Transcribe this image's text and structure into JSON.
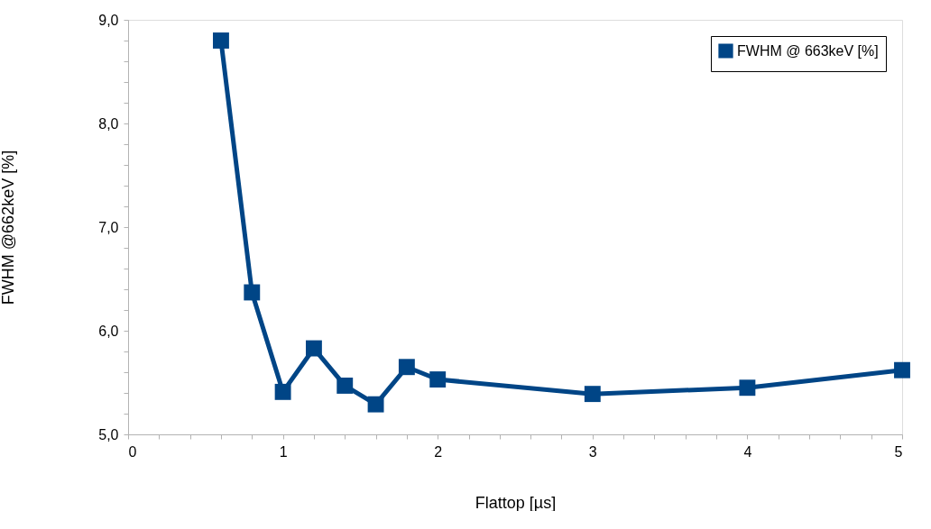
{
  "chart_data": {
    "type": "line",
    "xlabel": "Flattop [µs]",
    "ylabel": "FWHM @662keV [%]",
    "x": [
      0.6,
      0.8,
      1.0,
      1.2,
      1.4,
      1.6,
      1.8,
      2.0,
      3.0,
      4.0,
      5.0
    ],
    "series": [
      {
        "name": "FWHM @ 663keV [%]",
        "color": "#004586",
        "values": [
          8.8,
          6.37,
          5.41,
          5.83,
          5.47,
          5.29,
          5.65,
          5.53,
          5.39,
          5.45,
          5.62
        ]
      }
    ],
    "xlim": [
      0,
      5
    ],
    "ylim": [
      5,
      9
    ],
    "xticks": [
      0,
      {
        "value": 0.2,
        "label": null
      },
      {
        "value": 0.4,
        "label": null
      },
      {
        "value": 0.6,
        "label": null
      },
      {
        "value": 0.8,
        "label": null
      },
      1,
      {
        "value": 1.2,
        "label": null
      },
      {
        "value": 1.4,
        "label": null
      },
      {
        "value": 1.6,
        "label": null
      },
      {
        "value": 1.8,
        "label": null
      },
      2,
      {
        "value": 2.2,
        "label": null
      },
      {
        "value": 2.4,
        "label": null
      },
      {
        "value": 2.6,
        "label": null
      },
      {
        "value": 2.8,
        "label": null
      },
      3,
      {
        "value": 3.2,
        "label": null
      },
      {
        "value": 3.4,
        "label": null
      },
      {
        "value": 3.6,
        "label": null
      },
      {
        "value": 3.8,
        "label": null
      },
      4,
      {
        "value": 4.2,
        "label": null
      },
      {
        "value": 4.4,
        "label": null
      },
      {
        "value": 4.6,
        "label": null
      },
      {
        "value": 4.8,
        "label": null
      },
      5
    ],
    "yticks": [
      {
        "value": 5,
        "label": "5,0"
      },
      {
        "value": 5.2,
        "label": null
      },
      {
        "value": 5.4,
        "label": null
      },
      {
        "value": 5.6,
        "label": null
      },
      {
        "value": 5.8,
        "label": null
      },
      {
        "value": 6,
        "label": "6,0"
      },
      {
        "value": 6.2,
        "label": null
      },
      {
        "value": 6.4,
        "label": null
      },
      {
        "value": 6.6,
        "label": null
      },
      {
        "value": 6.8,
        "label": null
      },
      {
        "value": 7,
        "label": "7,0"
      },
      {
        "value": 7.2,
        "label": null
      },
      {
        "value": 7.4,
        "label": null
      },
      {
        "value": 7.6,
        "label": null
      },
      {
        "value": 7.8,
        "label": null
      },
      {
        "value": 8,
        "label": "8,0"
      },
      {
        "value": 8.2,
        "label": null
      },
      {
        "value": 8.4,
        "label": null
      },
      {
        "value": 8.6,
        "label": null
      },
      {
        "value": 8.8,
        "label": null
      },
      {
        "value": 9,
        "label": "9,0"
      }
    ],
    "grid": false,
    "legend": "top right",
    "marker": "square",
    "line_style": "solid"
  }
}
